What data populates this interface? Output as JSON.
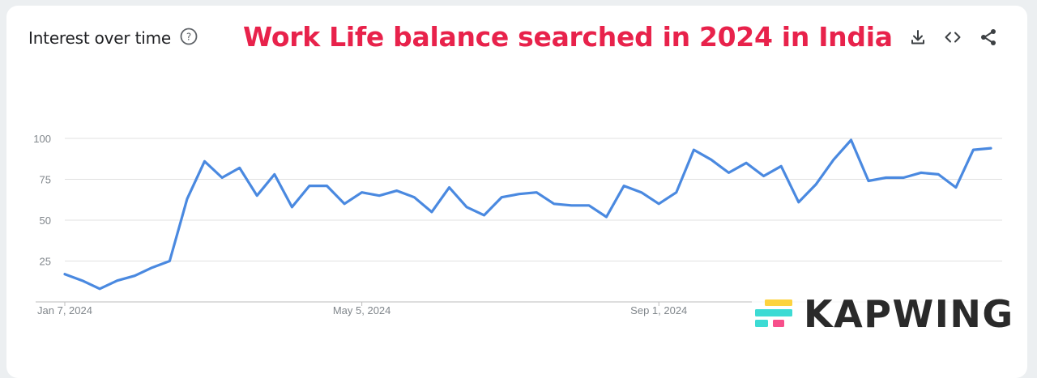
{
  "header": {
    "title": "Interest over time",
    "overlay_title": "Work Life balance searched in 2024 in India"
  },
  "toolbar": {
    "icons": [
      "download-icon",
      "embed-code-icon",
      "share-icon"
    ]
  },
  "watermark": {
    "brand": "KAPWING"
  },
  "colors": {
    "line": "#4a89e0",
    "overlay_title": "#e8224b",
    "grid": "#e0e0e0",
    "tick_text": "#80868b",
    "kapwing_teal": "#3ddbd4",
    "kapwing_yellow": "#fdd33f",
    "kapwing_pink": "#f74f8b"
  },
  "chart_data": {
    "type": "line",
    "title": "Interest over time",
    "xlabel": "",
    "ylabel": "",
    "ylim": [
      0,
      100
    ],
    "yticks": [
      25,
      50,
      75,
      100
    ],
    "x_tick_labels": [
      "Jan 7, 2024",
      "May 5, 2024",
      "Sep 1, 2024"
    ],
    "grid": true,
    "series": [
      {
        "values": [
          17,
          13,
          8,
          13,
          16,
          21,
          25,
          63,
          86,
          76,
          82,
          65,
          78,
          58,
          71,
          71,
          60,
          67,
          65,
          68,
          64,
          55,
          70,
          58,
          53,
          64,
          66,
          67,
          60,
          59,
          59,
          52,
          71,
          67,
          60,
          67,
          93,
          87,
          79,
          85,
          77,
          83,
          61,
          72,
          87,
          99,
          74,
          76,
          76,
          79,
          78,
          70,
          93,
          94
        ]
      }
    ]
  }
}
